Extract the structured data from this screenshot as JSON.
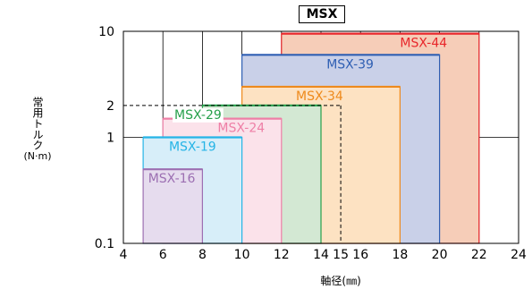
{
  "chart_data": {
    "type": "area",
    "title": "MSX",
    "xlabel": "軸径(㎜)",
    "ylabel_main": "常用トルク",
    "ylabel_unit": "(N·m)",
    "xlim": [
      4,
      24
    ],
    "ylim": [
      0.1,
      10
    ],
    "yscale": "log",
    "xticks": [
      "4",
      "6",
      "8",
      "10",
      "12",
      "14",
      "15",
      "16",
      "18",
      "20",
      "22",
      "24"
    ],
    "yticks": [
      "0.1",
      "1",
      "2",
      "10"
    ],
    "grid": true,
    "series": [
      {
        "name": "MSX-44",
        "x_range": [
          12,
          22
        ],
        "torque": 9.5,
        "color": "#e8262a",
        "fill": "#f6cdb8"
      },
      {
        "name": "MSX-39",
        "x_range": [
          10,
          20
        ],
        "torque": 6.0,
        "color": "#2f5fb3",
        "fill": "#c9d0e8"
      },
      {
        "name": "MSX-34",
        "x_range": [
          10,
          18
        ],
        "torque": 3.0,
        "color": "#ee8a1c",
        "fill": "#fde2c2"
      },
      {
        "name": "MSX-29",
        "x_range": [
          8,
          14
        ],
        "torque": 2.0,
        "color": "#27a04b",
        "fill": "#d3e8d3"
      },
      {
        "name": "MSX-24",
        "x_range": [
          6,
          12
        ],
        "torque": 1.5,
        "color": "#ee7fa6",
        "fill": "#fbe2ea"
      },
      {
        "name": "MSX-19",
        "x_range": [
          5,
          10
        ],
        "torque": 1.0,
        "color": "#25b4e6",
        "fill": "#d7eef9"
      },
      {
        "name": "MSX-16",
        "x_range": [
          5,
          8
        ],
        "torque": 0.5,
        "color": "#9c6fb2",
        "fill": "#e6dcee"
      }
    ],
    "annotation": {
      "x": 15,
      "y": 2,
      "style": "dashed"
    }
  }
}
